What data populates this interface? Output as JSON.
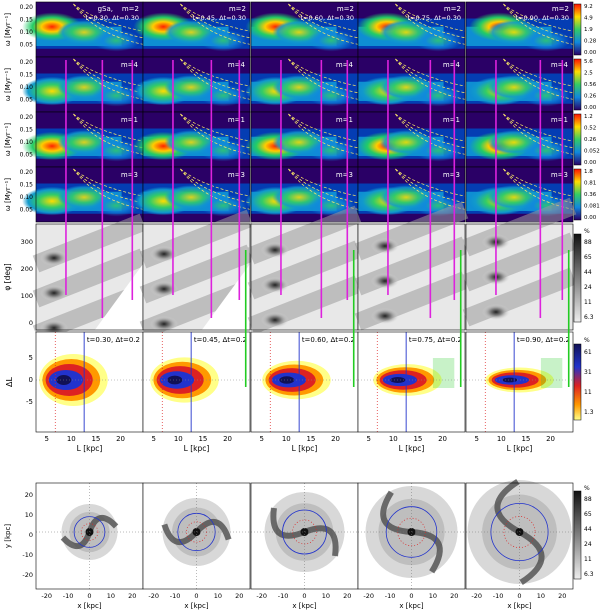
{
  "figure": {
    "columns": [
      {
        "time_label": "t=0.30, Δt=0.30",
        "dl_label": "t=0.30, Δt=0.2",
        "model": "gSa,"
      },
      {
        "time_label": "t=0.45, Δt=0.30",
        "dl_label": "t=0.45, Δt=0.2",
        "model": ""
      },
      {
        "time_label": "t=0.60, Δt=0.30",
        "dl_label": "t=0.60, Δt=0.2",
        "model": ""
      },
      {
        "time_label": "t=0.75, Δt=0.30",
        "dl_label": "t=0.75, Δt=0.2",
        "model": ""
      },
      {
        "time_label": "t=0.90, Δt=0.30",
        "dl_label": "t=0.90, Δt=0.2",
        "model": ""
      }
    ],
    "spectrogram_rows": [
      {
        "mode": "m=2",
        "colorbar_ticks": [
          "9.2",
          "4.9",
          "1.9",
          "0.28",
          "0.00"
        ]
      },
      {
        "mode": "m=4",
        "colorbar_ticks": [
          "5.6",
          "2.5",
          "0.56",
          "0.26",
          "0.00"
        ]
      },
      {
        "mode": "m=1",
        "colorbar_ticks": [
          "1.2",
          "0.52",
          "0.26",
          "0.052",
          "0.00"
        ]
      },
      {
        "mode": "m=3",
        "colorbar_ticks": [
          "1.8",
          "0.81",
          "0.36",
          "0.081",
          "0.00"
        ]
      }
    ],
    "spec_ylabel": "ω [Myr⁻¹]",
    "spec_yticks": [
      "0.20",
      "0.15",
      "0.10",
      "0.05"
    ],
    "phi_ylabel": "φ [deg]",
    "phi_yticks": [
      "300",
      "200",
      "100",
      "0"
    ],
    "phi_colorbar": {
      "unit": "%",
      "ticks": [
        "88",
        "65",
        "44",
        "24",
        "11",
        "6.3"
      ]
    },
    "dl_ylabel": "ΔL",
    "dl_yticks": [
      "5",
      "0",
      "-5"
    ],
    "dl_xlabel": "L [kpc]",
    "dl_xticks": [
      "5",
      "10",
      "15",
      "20"
    ],
    "dl_colorbar": {
      "unit": "%",
      "ticks": [
        "61",
        "31",
        "11",
        "1.3"
      ]
    },
    "xy_ylabel": "y [kpc]",
    "xy_yticks": [
      "20",
      "10",
      "0",
      "-10",
      "-20"
    ],
    "xy_xlabel": "x [kpc]",
    "xy_xticks": [
      "-20",
      "-10",
      "0",
      "10",
      "20"
    ],
    "xy_colorbar": {
      "unit": "%",
      "ticks": [
        "88",
        "65",
        "44",
        "24",
        "11",
        "6.3"
      ]
    },
    "colors": {
      "spec_background": "#2a0066",
      "magenta_marker": "#dd22dd",
      "green_marker": "#22cc22",
      "blue_marker": "#2233cc",
      "guide_curves": "#ffee66"
    }
  }
}
